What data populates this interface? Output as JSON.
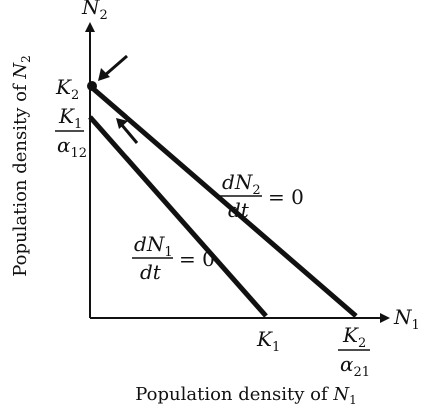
{
  "axes": {
    "y_axis_symbol": "N",
    "y_axis_symbol_sub": "2",
    "x_axis_symbol": "N",
    "x_axis_symbol_sub": "1",
    "y_axis_label_prefix": "Population density of ",
    "y_axis_label_symbol": "N",
    "y_axis_label_sub": "2",
    "x_axis_label_prefix": "Population density of ",
    "x_axis_label_symbol": "N",
    "x_axis_label_sub": "1"
  },
  "labels": {
    "k2_y": {
      "main": "K",
      "sub": "2"
    },
    "k1_over_alpha12": {
      "num_main": "K",
      "num_sub": "1",
      "den_main": "α",
      "den_sub": "12"
    },
    "k1_x": {
      "main": "K",
      "sub": "1"
    },
    "k2_over_alpha21": {
      "num_main": "K",
      "num_sub": "2",
      "den_main": "α",
      "den_sub": "21"
    }
  },
  "isoclines": {
    "n2": {
      "num_d": "d",
      "num_main": "N",
      "num_sub": "2",
      "den": "dt",
      "rhs": "= 0"
    },
    "n1": {
      "num_d": "d",
      "num_main": "N",
      "num_sub": "1",
      "den": "dt",
      "rhs": "= 0"
    }
  },
  "colors": {
    "ink": "#111111",
    "background": "#ffffff"
  },
  "icons": [
    "pointer-arrow-icon",
    "direction-arrow-icon"
  ]
}
